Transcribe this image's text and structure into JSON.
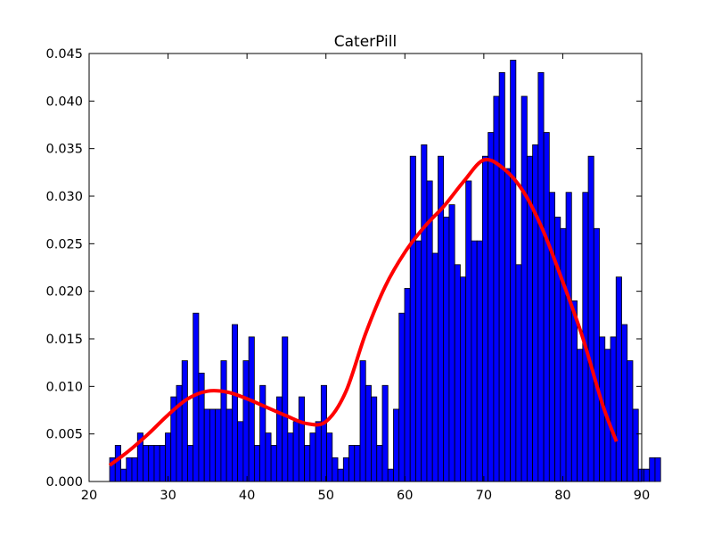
{
  "chart_data": {
    "type": "bar",
    "title": "CaterPill",
    "xlabel": "",
    "ylabel": "",
    "xlim": [
      20,
      90
    ],
    "ylim": [
      0,
      0.045
    ],
    "xticks": [
      20,
      30,
      40,
      50,
      60,
      70,
      80,
      90
    ],
    "xtick_labels": [
      "20",
      "30",
      "40",
      "50",
      "60",
      "70",
      "80",
      "90"
    ],
    "yticks": [
      0,
      0.005,
      0.01,
      0.015,
      0.02,
      0.025,
      0.03,
      0.035,
      0.04,
      0.045
    ],
    "ytick_labels": [
      "0.000",
      "0.005",
      "0.010",
      "0.015",
      "0.020",
      "0.025",
      "0.030",
      "0.035",
      "0.040",
      "0.045"
    ],
    "grid": false,
    "bar_color": "#0000ff",
    "bar_edge_color": "#000000",
    "line_color": "#ff0000",
    "series": [
      {
        "type": "histogram",
        "bin_start": 22.6,
        "bin_width": 0.705,
        "values": [
          0.0025,
          0.0038,
          0.0013,
          0.0025,
          0.0025,
          0.0051,
          0.0038,
          0.0038,
          0.0038,
          0.0038,
          0.0051,
          0.0089,
          0.0101,
          0.0127,
          0.0038,
          0.0177,
          0.0114,
          0.0076,
          0.0076,
          0.0076,
          0.0127,
          0.0076,
          0.0165,
          0.0063,
          0.0127,
          0.0152,
          0.0038,
          0.0101,
          0.0051,
          0.0038,
          0.0089,
          0.0152,
          0.0051,
          0.0063,
          0.0089,
          0.0038,
          0.0051,
          0.0063,
          0.0101,
          0.0051,
          0.0025,
          0.0013,
          0.0025,
          0.0038,
          0.0038,
          0.0127,
          0.0101,
          0.0089,
          0.0038,
          0.0101,
          0.0013,
          0.0076,
          0.0177,
          0.0203,
          0.0342,
          0.0253,
          0.0354,
          0.0316,
          0.024,
          0.0342,
          0.0278,
          0.0291,
          0.0228,
          0.0215,
          0.0316,
          0.0253,
          0.0253,
          0.0342,
          0.0367,
          0.0405,
          0.043,
          0.0329,
          0.0443,
          0.0228,
          0.0405,
          0.0342,
          0.0354,
          0.043,
          0.0367,
          0.0304,
          0.0278,
          0.0266,
          0.0304,
          0.019,
          0.0139,
          0.0304,
          0.0342,
          0.0266,
          0.0152,
          0.0139,
          0.0152,
          0.0215,
          0.0165,
          0.0127,
          0.0076,
          0.0013,
          0.0013,
          0.0025,
          0.0025
        ]
      },
      {
        "type": "line",
        "x": [
          22.6,
          25,
          27.5,
          30,
          32.5,
          35,
          37.5,
          40,
          42.5,
          45,
          47.5,
          50,
          52.5,
          55,
          57.5,
          60,
          62.5,
          65,
          67.5,
          70,
          72.5,
          75,
          77.5,
          80,
          82.5,
          85,
          86.8
        ],
        "values": [
          0.0017,
          0.0032,
          0.005,
          0.007,
          0.0087,
          0.0095,
          0.0094,
          0.0087,
          0.0078,
          0.0069,
          0.0061,
          0.0063,
          0.0094,
          0.0155,
          0.0205,
          0.0241,
          0.0268,
          0.029,
          0.0316,
          0.0338,
          0.0329,
          0.0305,
          0.0264,
          0.021,
          0.0152,
          0.0082,
          0.0042
        ]
      }
    ]
  }
}
